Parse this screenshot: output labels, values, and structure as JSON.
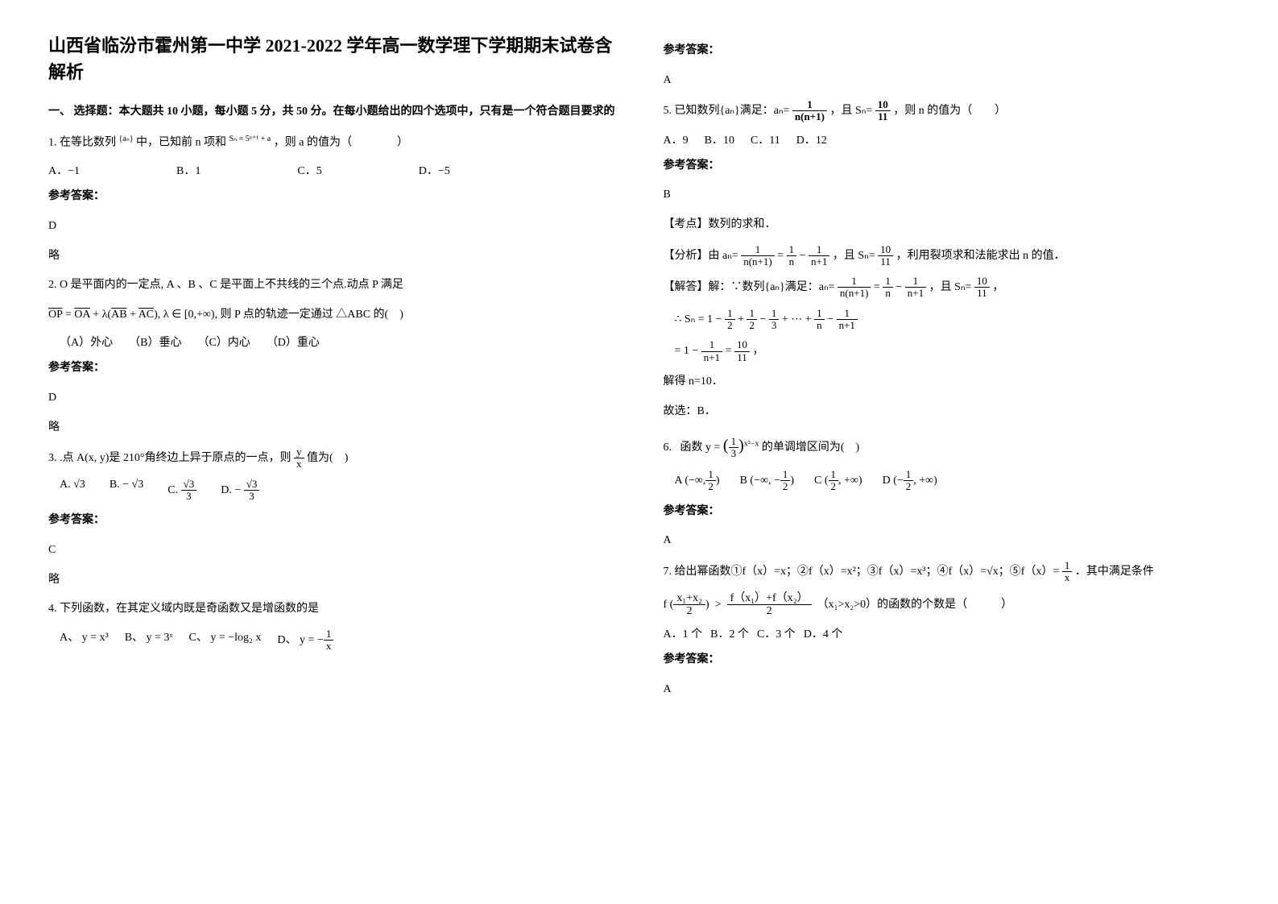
{
  "title": "山西省临汾市霍州第一中学 2021-2022 学年高一数学理下学期期末试卷含解析",
  "section1": "一、 选择题：本大题共 10 小题，每小题 5 分，共 50 分。在每小题给出的四个选项中，只有是一个符合题目要求的",
  "q1": {
    "stem_a": "1. 在等比数列",
    "seq": "{aₙ}",
    "stem_b": "中，已知前 n 项和",
    "sum": "Sₙ = 5ⁿ⁺¹ + a",
    "stem_c": "，则 a 的值为（　　　　）",
    "optA": "A．−1",
    "optB": "B．1",
    "optC": "C．5",
    "optD": "D．−5",
    "ans_label": "参考答案：",
    "ans": "D",
    "note": "略"
  },
  "q2": {
    "stem_a": "2. O 是平面内的一定点, A 、B 、C 是平面上不共线的三个点.动点 P 满足",
    "formula": "OP = OA + λ(AB + AC), λ ∈ [0,+∞),",
    "stem_b": "则 P 点的轨迹一定通过 △ABC 的(　)",
    "optA": "（A）外心",
    "optB": "（B）垂心",
    "optC": "（C）内心",
    "optD": "（D）重心",
    "ans_label": "参考答案：",
    "ans": "D",
    "note": "略"
  },
  "q3": {
    "stem": "3. .点 A(x, y)是 210°角终边上异于原点的一点，则",
    "frac_num": "y",
    "frac_den": "x",
    "stem_tail": "值为(　)",
    "optA_pre": "A.",
    "optA_val": "√3",
    "optB_pre": "B. −",
    "optB_val": "√3",
    "optC_pre": "C.",
    "optC_num": "√3",
    "optC_den": "3",
    "optD_pre": "D. −",
    "optD_num": "√3",
    "optD_den": "3",
    "ans_label": "参考答案：",
    "ans": "C",
    "note": "略"
  },
  "q4": {
    "stem": "4. 下列函数，在其定义域内既是奇函数又是增函数的是",
    "optA": "A、 y = x³",
    "optB": "B、 y = 3ˣ",
    "optC": "C、 y = −log₂ x",
    "optD_pre": "D、",
    "optD_num": "1",
    "optD_den": "x",
    "optD_lead": "y = −",
    "ans_label": "参考答案：",
    "ans": "A"
  },
  "q5": {
    "stem_a": "5. 已知数列{aₙ}满足：aₙ=",
    "a_num": "1",
    "a_den": "n(n+1)",
    "stem_b": "，且 Sₙ=",
    "s_num": "10",
    "s_den": "11",
    "stem_c": "，则 n 的值为（　　）",
    "optA": "A．9",
    "optB": "B．10",
    "optC": "C．11",
    "optD": "D．12",
    "ans_label": "参考答案：",
    "ans": "B",
    "kd": "【考点】数列的求和．",
    "fx_a": "【分析】由 aₙ=",
    "fx_num1": "1",
    "fx_den1": "n(n+1)",
    "fx_eq": "=",
    "fx_num2": "1",
    "fx_den2": "n",
    "fx_minus": "−",
    "fx_num3": "1",
    "fx_den3": "n+1",
    "fx_b": "，且 Sₙ=",
    "fx_num4": "10",
    "fx_den4": "11",
    "fx_c": "，利用裂项求和法能求出 n 的值．",
    "jda_a": "【解答】解：∵数列{aₙ}满足：aₙ=",
    "jda_b": "，且 Sₙ=",
    "jda_c": "，",
    "sn_lead": "∴ Sₙ = 1 −",
    "sn_t1n": "1",
    "sn_t1d": "2",
    "sn_plus": "+",
    "sn_t2n": "1",
    "sn_t2d": "2",
    "sn_minus": "−",
    "sn_t3n": "1",
    "sn_t3d": "3",
    "sn_dots": "+ ⋯ +",
    "sn_t4n": "1",
    "sn_t4d": "n",
    "sn_t5n": "1",
    "sn_t5d": "n+1",
    "eq_lead": "= 1 −",
    "eq_n1": "1",
    "eq_d1": "n+1",
    "eq_eq": "=",
    "eq_n2": "10",
    "eq_d2": "11",
    "eq_tail": "，",
    "solve": "解得 n=10．",
    "pick": "故选：B．"
  },
  "q6": {
    "stem_a": "6.",
    "stem_main_a": "函数 y = ",
    "base_num": "1",
    "base_den": "3",
    "exp": "x²−x",
    "stem_main_b": "的单调增区间为(　)",
    "optA_pre": "A",
    "optA_l": "(−∞,",
    "optA_num": "1",
    "optA_den": "2",
    "optA_r": ")",
    "optB_pre": "B",
    "optB_l": "(−∞, −",
    "optB_num": "1",
    "optB_den": "2",
    "optB_r": ")",
    "optC_pre": "C",
    "optC_l": "(",
    "optC_num": "1",
    "optC_den": "2",
    "optC_r": ", +∞)",
    "optD_pre": "D",
    "optD_l": "(−",
    "optD_num": "1",
    "optD_den": "2",
    "optD_r": ", +∞)",
    "ans_label": "参考答案：",
    "ans": "A"
  },
  "q7": {
    "stem_a": "7. 给出幂函数①f（x）=x；②f（x）=x²；③f（x）=x³；④f（x）=√x；⑤f（x）=",
    "f5_num": "1",
    "f5_den": "x",
    "stem_b": "．其中满足条件",
    "cond_lead": "f",
    "cond_l_open": "(",
    "cond_argn": "x₁+x₂",
    "cond_argd": "2",
    "cond_l_close": ")",
    "cond_gt": ">",
    "cond_rhs_n": "f（x₁）+f（x₂）",
    "cond_rhs_d": "2",
    "cond_tail": "（x₁>x₂>0）的函数的个数是（　　　）",
    "optA": "A．1 个",
    "optB": "B．2 个",
    "optC": "C．3 个",
    "optD": "D．4 个",
    "ans_label": "参考答案：",
    "ans": "A"
  }
}
